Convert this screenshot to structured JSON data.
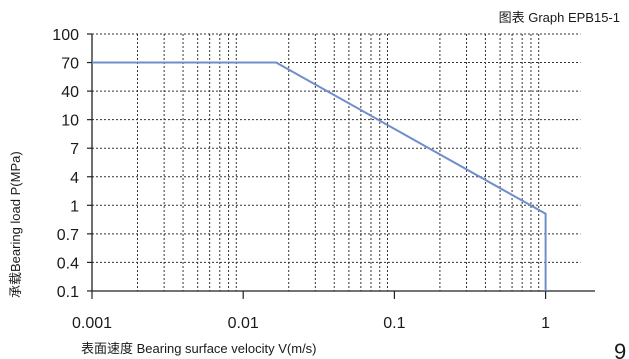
{
  "chart_data": {
    "type": "line",
    "title": "图表 Graph EPB15-1",
    "xlabel": "表面速度 Bearing surface velocity V(m/s)",
    "ylabel": "承载Bearing load P(MPa)",
    "x_scale": "log",
    "y_scale": "nonuniform",
    "xlim": [
      0.001,
      1.7
    ],
    "ylim": [
      0.1,
      100
    ],
    "x_ticks": [
      0.001,
      0.01,
      0.1,
      1
    ],
    "x_tick_labels": [
      "0.001",
      "0.01",
      "0.1",
      "1"
    ],
    "y_ticks": [
      0.1,
      0.4,
      0.7,
      1,
      4,
      7,
      10,
      40,
      70,
      100
    ],
    "y_tick_labels": [
      "0.1",
      "0.4",
      "0.7",
      "1",
      "4",
      "7",
      "10",
      "40",
      "70",
      "100"
    ],
    "grid": true,
    "series": [
      {
        "color": "#6f8fca",
        "points": [
          {
            "x": 0.001,
            "y": 70
          },
          {
            "x": 0.0165,
            "y": 70
          },
          {
            "x": 1.0,
            "y": 0.9
          },
          {
            "x": 1.0,
            "y": 0.1
          }
        ]
      }
    ]
  },
  "page_number": "9"
}
